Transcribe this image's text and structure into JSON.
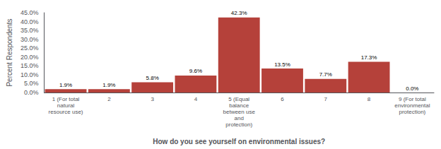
{
  "chart_data": {
    "type": "bar",
    "categories": [
      "1 (For total\nnatural\nresource use)",
      "2",
      "3",
      "4",
      "5 (Equal\nbalance\nbetween use\nand\nprotection)",
      "6",
      "7",
      "8",
      "9 (For total\nenvironmental\nprotection)"
    ],
    "values": [
      1.9,
      1.9,
      5.8,
      9.6,
      42.3,
      13.5,
      7.7,
      17.3,
      0.0
    ],
    "value_labels": [
      "1.9%",
      "1.9%",
      "5.8%",
      "9.6%",
      "42.3%",
      "13.5%",
      "7.7%",
      "17.3%",
      "0.0%"
    ],
    "data_labels": true,
    "color": "#b5413a",
    "ylabel": "Percent Respondents",
    "xlabel": "How do you see yourself on environmental issues?",
    "ylim": [
      0,
      45.0
    ],
    "yticks": [
      {
        "value": 0.0,
        "label": "0.0%"
      },
      {
        "value": 5.0,
        "label": "5.0%"
      },
      {
        "value": 10.0,
        "label": "10.0%"
      },
      {
        "value": 15.0,
        "label": "15.0%"
      },
      {
        "value": 20.0,
        "label": "20.0%"
      },
      {
        "value": 25.0,
        "label": "25.0%"
      },
      {
        "value": 30.0,
        "label": "30.0%"
      },
      {
        "value": 35.0,
        "label": "35.0%"
      },
      {
        "value": 40.0,
        "label": "40.0%"
      },
      {
        "value": 45.0,
        "label": "45.0%"
      }
    ],
    "grid": false
  }
}
